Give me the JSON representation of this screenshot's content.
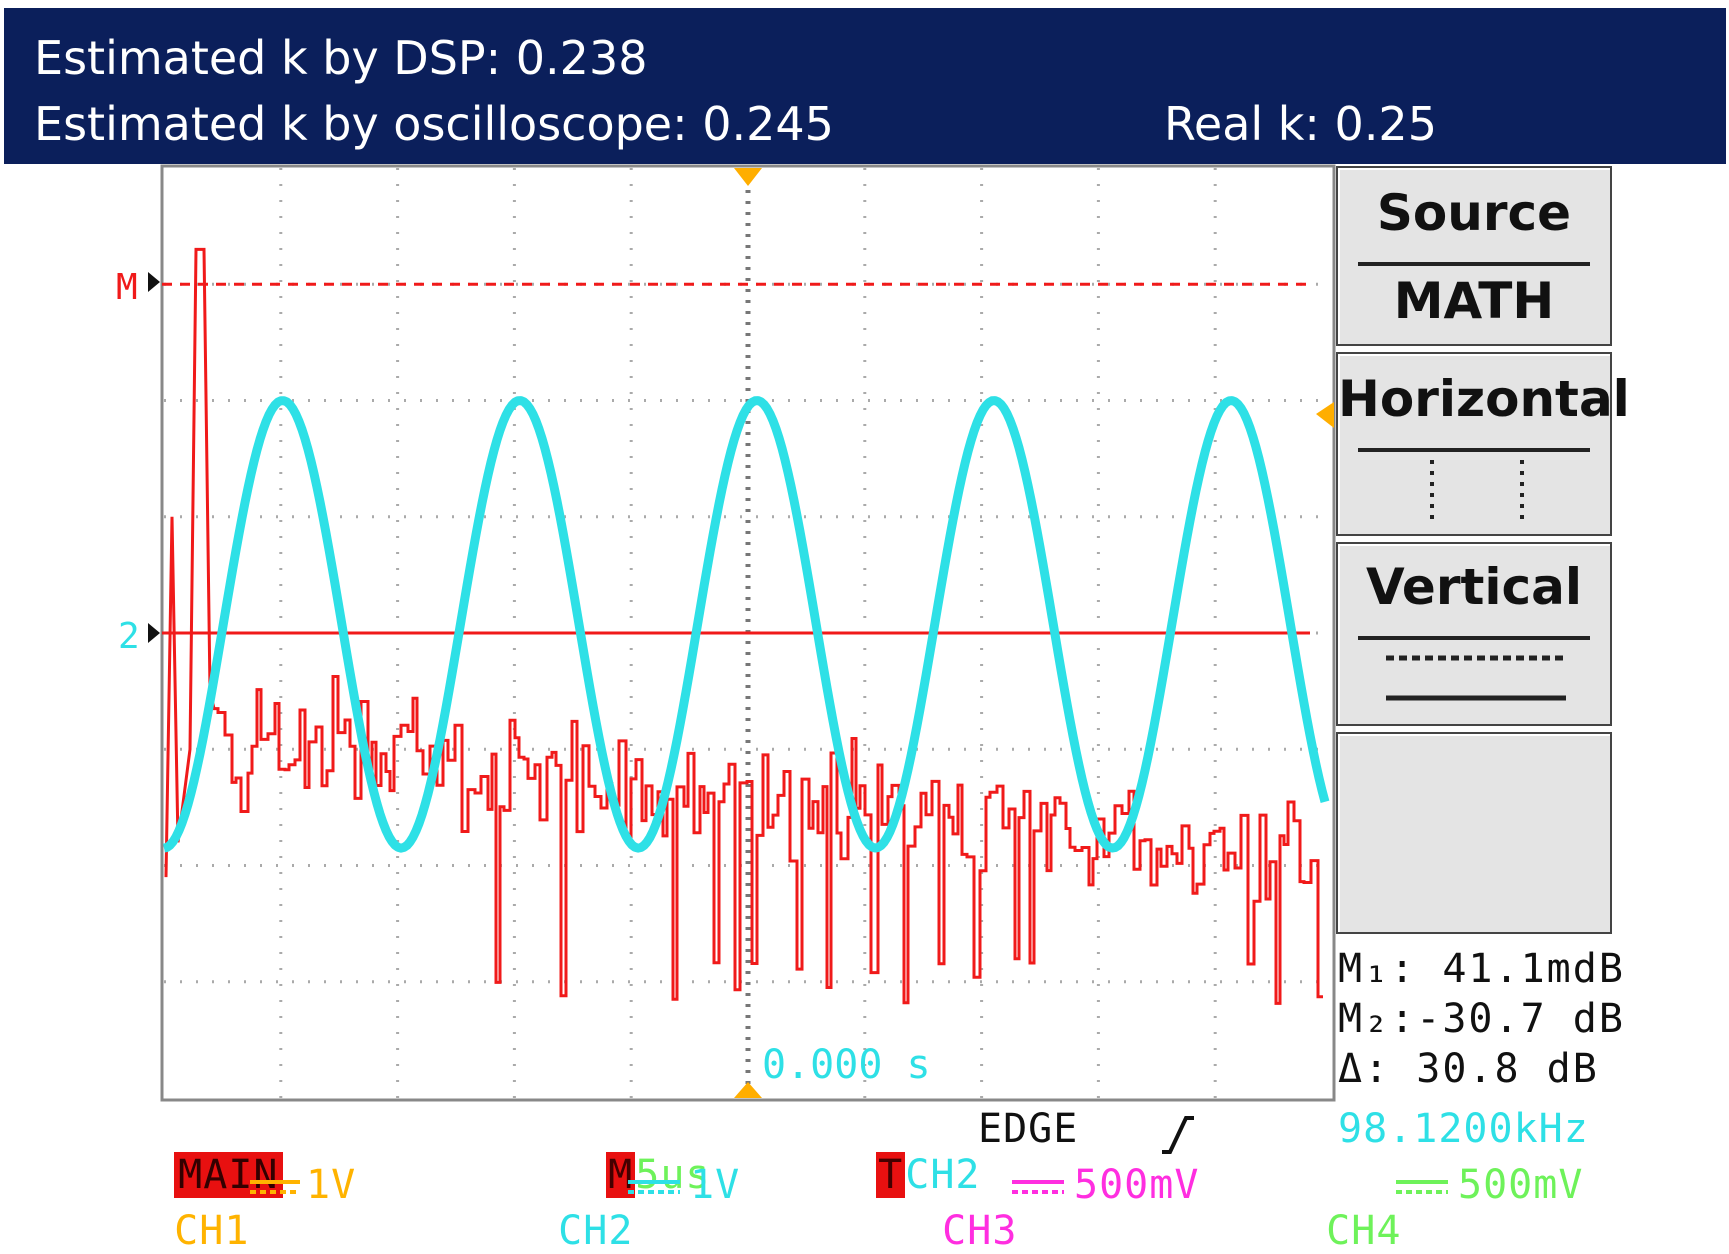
{
  "header": {
    "dsp_estimate": "Estimated k by DSP: 0.238",
    "scope_estimate": "Estimated k by oscilloscope: 0.245",
    "real_k": "Real k: 0.25"
  },
  "colors": {
    "banner": "#0b1f5b",
    "ch2_trace": "#2ee0e6",
    "math_trace": "#f01a1a",
    "ch1": "#ffb300",
    "ch3": "#ff2ee0",
    "ch4": "#6ef25a",
    "marker": "#ffae00"
  },
  "scope": {
    "marker_math": "M",
    "marker_ch2": "2",
    "trigger_time": "0.000 s",
    "math_ref_level_divs": 3.0,
    "ch2_ref_level_divs": 0.0,
    "ch2_wave": {
      "cycles_in_window": 4.9,
      "peak_divs": 2.0,
      "trough_divs": -1.85
    }
  },
  "menu": {
    "source_title": "Source",
    "source_value": "MATH",
    "horizontal_title": "Horizontal",
    "vertical_title": "Vertical"
  },
  "readouts": {
    "m1": "M₁: 41.1mdB",
    "m2": "M₂:-30.7 dB",
    "delta": "Δ: 30.8 dB"
  },
  "status_bar": {
    "mode": "MAIN",
    "timebase_tag": "M",
    "timebase": "5us",
    "trigger_tag": "T",
    "trigger_source": "CH2",
    "trigger_type": "EDGE",
    "trigger_slope_icon": "rising-edge-icon",
    "frequency": "98.1200kHz"
  },
  "channels": [
    {
      "name": "CH1",
      "scale": "1V"
    },
    {
      "name": "CH2",
      "scale": "1V"
    },
    {
      "name": "CH3",
      "scale": "500mV"
    },
    {
      "name": "CH4",
      "scale": "500mV"
    }
  ]
}
